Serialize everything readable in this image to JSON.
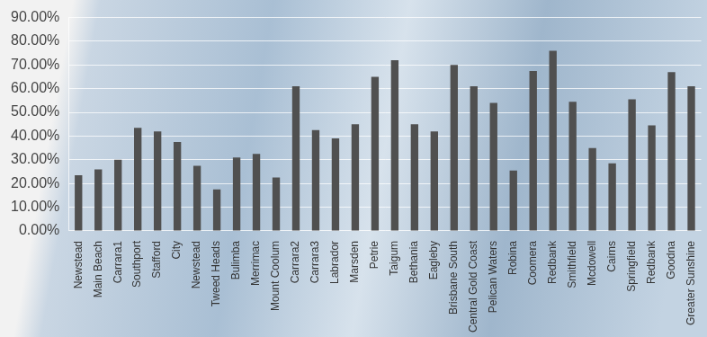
{
  "chart_data": {
    "type": "bar",
    "categories": [
      "Newstead",
      "Main Beach",
      "Carrara1",
      "Southport",
      "Stafford",
      "City",
      "Newstead",
      "Tweed Heads",
      "Bulimba",
      "Merrimac",
      "Mount Coolum",
      "Carrara2",
      "Carrara3",
      "Labrador",
      "Marsden",
      "Petrie",
      "Taigum",
      "Bethania",
      "Eagleby",
      "Brisbane South",
      "Central Gold Coast",
      "Pelican Waters",
      "Robina",
      "Coomera",
      "Redbank",
      "Smithfield",
      "Mcdowell",
      "Cairns",
      "Springfield",
      "Redbank",
      "Goodna",
      "Greater Sunshine"
    ],
    "values": [
      23.5,
      26,
      30,
      43.5,
      42,
      37.5,
      27.5,
      17.5,
      31,
      32.5,
      22.5,
      61,
      42.5,
      39,
      45,
      65,
      72,
      45,
      42,
      70,
      61,
      54,
      25.5,
      67.5,
      76,
      54.5,
      35,
      28.5,
      55.5,
      44.5,
      67,
      61
    ],
    "color": "#505050",
    "ylim": [
      0,
      90
    ],
    "yticks": [
      {
        "value": 0,
        "label": "0.00%"
      },
      {
        "value": 10,
        "label": "10.00%"
      },
      {
        "value": 20,
        "label": "20.00%"
      },
      {
        "value": 30,
        "label": "30.00%"
      },
      {
        "value": 40,
        "label": "40.00%"
      },
      {
        "value": 50,
        "label": "50.00%"
      },
      {
        "value": 60,
        "label": "60.00%"
      },
      {
        "value": 70,
        "label": "70.00%"
      },
      {
        "value": 80,
        "label": "80.00%"
      },
      {
        "value": 90,
        "label": "90.00%"
      }
    ],
    "grid": true
  }
}
